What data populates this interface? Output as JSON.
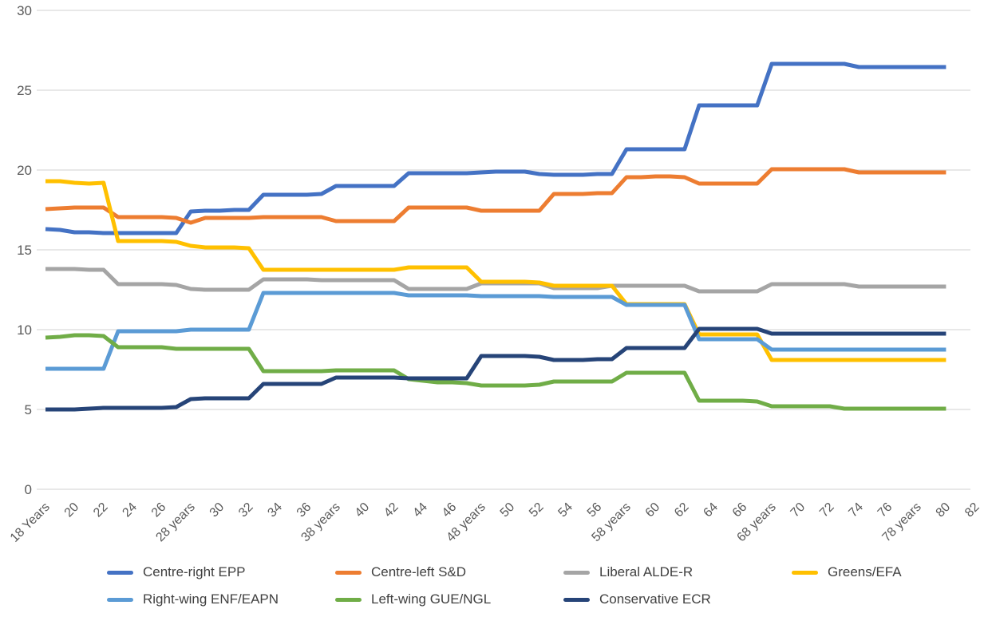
{
  "chart_data": {
    "type": "line",
    "title": "",
    "xlabel": "",
    "ylabel": "",
    "ylim": [
      0,
      30
    ],
    "grid": "horizontal",
    "legend_position": "bottom",
    "y_ticks": [
      0,
      5,
      10,
      15,
      20,
      25,
      30
    ],
    "x_tick_labels": [
      "18 Years",
      "20",
      "22",
      "24",
      "26",
      "28 years",
      "30",
      "32",
      "34",
      "36",
      "38 years",
      "40",
      "42",
      "44",
      "46",
      "48 years",
      "50",
      "52",
      "54",
      "56",
      "58 years",
      "60",
      "62",
      "64",
      "66",
      "68 years",
      "70",
      "72",
      "74",
      "76",
      "78 years",
      "80",
      "82"
    ],
    "ages": [
      18,
      19,
      20,
      21,
      22,
      23,
      24,
      25,
      26,
      27,
      28,
      29,
      30,
      31,
      32,
      33,
      34,
      35,
      36,
      37,
      38,
      39,
      40,
      41,
      42,
      43,
      44,
      45,
      46,
      47,
      48,
      49,
      50,
      51,
      52,
      53,
      54,
      55,
      56,
      57,
      58,
      59,
      60,
      61,
      62,
      63,
      64,
      65,
      66,
      67,
      68,
      69,
      70,
      71,
      72,
      73,
      74,
      75,
      76,
      77,
      78,
      79,
      80
    ],
    "series": [
      {
        "name": "Centre-right EPP",
        "color": "#4472C4",
        "values": [
          16.3,
          16.25,
          16.1,
          16.1,
          16.05,
          16.05,
          16.05,
          16.05,
          16.05,
          16.05,
          17.4,
          17.45,
          17.45,
          17.5,
          17.5,
          18.45,
          18.45,
          18.45,
          18.45,
          18.5,
          19.0,
          19.0,
          19.0,
          19.0,
          19.0,
          19.8,
          19.8,
          19.8,
          19.8,
          19.8,
          19.85,
          19.9,
          19.9,
          19.9,
          19.75,
          19.7,
          19.7,
          19.7,
          19.75,
          19.75,
          21.3,
          21.3,
          21.3,
          21.3,
          21.3,
          24.05,
          24.05,
          24.05,
          24.05,
          24.05,
          26.65,
          26.65,
          26.65,
          26.65,
          26.65,
          26.65,
          26.45,
          26.45,
          26.45,
          26.45,
          26.45,
          26.45,
          26.45
        ]
      },
      {
        "name": "Centre-left S&D",
        "color": "#ED7D31",
        "values": [
          17.55,
          17.6,
          17.65,
          17.65,
          17.65,
          17.05,
          17.05,
          17.05,
          17.05,
          17.0,
          16.7,
          17.0,
          17.0,
          17.0,
          17.0,
          17.05,
          17.05,
          17.05,
          17.05,
          17.05,
          16.8,
          16.8,
          16.8,
          16.8,
          16.8,
          17.65,
          17.65,
          17.65,
          17.65,
          17.65,
          17.45,
          17.45,
          17.45,
          17.45,
          17.45,
          18.5,
          18.5,
          18.5,
          18.55,
          18.55,
          19.55,
          19.55,
          19.6,
          19.6,
          19.55,
          19.15,
          19.15,
          19.15,
          19.15,
          19.15,
          20.05,
          20.05,
          20.05,
          20.05,
          20.05,
          20.05,
          19.85,
          19.85,
          19.85,
          19.85,
          19.85,
          19.85,
          19.85
        ]
      },
      {
        "name": "Liberal ALDE-R",
        "color": "#A5A5A5",
        "values": [
          13.8,
          13.8,
          13.8,
          13.75,
          13.75,
          12.85,
          12.85,
          12.85,
          12.85,
          12.8,
          12.55,
          12.5,
          12.5,
          12.5,
          12.5,
          13.15,
          13.15,
          13.15,
          13.15,
          13.1,
          13.1,
          13.1,
          13.1,
          13.1,
          13.1,
          12.55,
          12.55,
          12.55,
          12.55,
          12.55,
          12.9,
          12.9,
          12.9,
          12.9,
          12.9,
          12.6,
          12.6,
          12.6,
          12.6,
          12.75,
          12.75,
          12.75,
          12.75,
          12.75,
          12.75,
          12.4,
          12.4,
          12.4,
          12.4,
          12.4,
          12.85,
          12.85,
          12.85,
          12.85,
          12.85,
          12.85,
          12.7,
          12.7,
          12.7,
          12.7,
          12.7,
          12.7,
          12.7
        ]
      },
      {
        "name": "Greens/EFA",
        "color": "#FFC000",
        "values": [
          19.3,
          19.3,
          19.2,
          19.15,
          19.2,
          15.55,
          15.55,
          15.55,
          15.55,
          15.5,
          15.25,
          15.15,
          15.15,
          15.15,
          15.1,
          13.75,
          13.75,
          13.75,
          13.75,
          13.75,
          13.75,
          13.75,
          13.75,
          13.75,
          13.75,
          13.9,
          13.9,
          13.9,
          13.9,
          13.9,
          13.0,
          13.0,
          13.0,
          13.0,
          12.95,
          12.75,
          12.75,
          12.75,
          12.75,
          12.75,
          11.6,
          11.6,
          11.6,
          11.6,
          11.6,
          9.7,
          9.7,
          9.7,
          9.7,
          9.7,
          8.1,
          8.1,
          8.1,
          8.1,
          8.1,
          8.1,
          8.1,
          8.1,
          8.1,
          8.1,
          8.1,
          8.1,
          8.1
        ]
      },
      {
        "name": "Right-wing ENF/EAPN",
        "color": "#5B9BD5",
        "values": [
          7.55,
          7.55,
          7.55,
          7.55,
          7.55,
          9.9,
          9.9,
          9.9,
          9.9,
          9.9,
          10.0,
          10.0,
          10.0,
          10.0,
          10.0,
          12.3,
          12.3,
          12.3,
          12.3,
          12.3,
          12.3,
          12.3,
          12.3,
          12.3,
          12.3,
          12.15,
          12.15,
          12.15,
          12.15,
          12.15,
          12.1,
          12.1,
          12.1,
          12.1,
          12.1,
          12.05,
          12.05,
          12.05,
          12.05,
          12.05,
          11.55,
          11.55,
          11.55,
          11.55,
          11.55,
          9.4,
          9.4,
          9.4,
          9.4,
          9.4,
          8.75,
          8.75,
          8.75,
          8.75,
          8.75,
          8.75,
          8.75,
          8.75,
          8.75,
          8.75,
          8.75,
          8.75,
          8.75
        ]
      },
      {
        "name": "Left-wing GUE/NGL",
        "color": "#70AD47",
        "values": [
          9.5,
          9.55,
          9.65,
          9.65,
          9.6,
          8.9,
          8.9,
          8.9,
          8.9,
          8.8,
          8.8,
          8.8,
          8.8,
          8.8,
          8.8,
          7.4,
          7.4,
          7.4,
          7.4,
          7.4,
          7.45,
          7.45,
          7.45,
          7.45,
          7.45,
          6.9,
          6.8,
          6.7,
          6.7,
          6.65,
          6.5,
          6.5,
          6.5,
          6.5,
          6.55,
          6.75,
          6.75,
          6.75,
          6.75,
          6.75,
          7.3,
          7.3,
          7.3,
          7.3,
          7.3,
          5.55,
          5.55,
          5.55,
          5.55,
          5.5,
          5.2,
          5.2,
          5.2,
          5.2,
          5.2,
          5.05,
          5.05,
          5.05,
          5.05,
          5.05,
          5.05,
          5.05,
          5.05
        ]
      },
      {
        "name": "Conservative ECR",
        "color": "#264478",
        "values": [
          5.0,
          5.0,
          5.0,
          5.05,
          5.1,
          5.1,
          5.1,
          5.1,
          5.1,
          5.15,
          5.65,
          5.7,
          5.7,
          5.7,
          5.7,
          6.6,
          6.6,
          6.6,
          6.6,
          6.6,
          7.0,
          7.0,
          7.0,
          7.0,
          7.0,
          6.95,
          6.95,
          6.95,
          6.95,
          6.95,
          8.35,
          8.35,
          8.35,
          8.35,
          8.3,
          8.1,
          8.1,
          8.1,
          8.15,
          8.15,
          8.85,
          8.85,
          8.85,
          8.85,
          8.85,
          10.05,
          10.05,
          10.05,
          10.05,
          10.05,
          9.75,
          9.75,
          9.75,
          9.75,
          9.75,
          9.75,
          9.75,
          9.75,
          9.75,
          9.75,
          9.75,
          9.75,
          9.75
        ]
      }
    ]
  }
}
